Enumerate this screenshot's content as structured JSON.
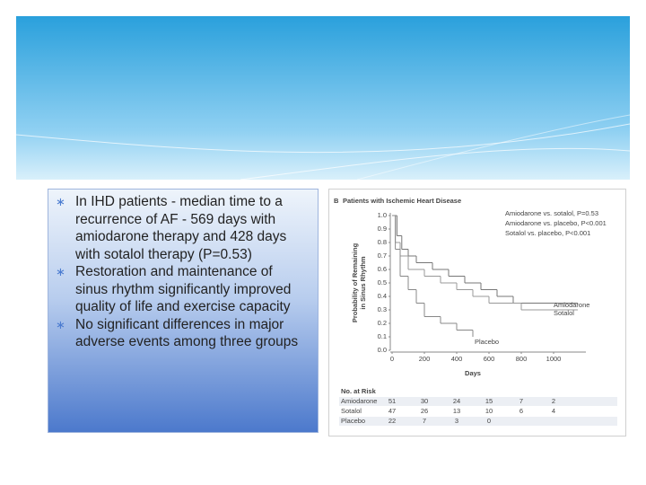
{
  "bullets": [
    "In IHD patients - median time to a recurrence of AF - 569 days with amiodarone therapy and 428 days with sotalol therapy (P=0.53)",
    "Restoration and maintenance of sinus rhythm significantly improved quality of life and exercise capacity",
    "No significant differences in major adverse events among three groups"
  ],
  "chart_data": {
    "type": "line",
    "step": true,
    "panel": "B",
    "title": "Patients with Ischemic Heart Disease",
    "ylabel": [
      "Probability of Remaining",
      "in Sinus Rhythm"
    ],
    "xlabel": "Days",
    "annotations": [
      "Amiodarone vs. sotalol, P=0.53",
      "Amiodarone vs. placebo, P<0.001",
      "Sotalol vs. placebo, P<0.001"
    ],
    "xlim": [
      0,
      1200
    ],
    "xticks": [
      0,
      200,
      400,
      600,
      800,
      1000
    ],
    "ylim": [
      0,
      1
    ],
    "yticks": [
      {
        "value": 0,
        "label": "0.0"
      },
      {
        "value": 0.1,
        "label": "0.1"
      },
      {
        "value": 0.2,
        "label": "0.2"
      },
      {
        "value": 0.3,
        "label": "0.3"
      },
      {
        "value": 0.4,
        "label": "0.4"
      },
      {
        "value": 0.5,
        "label": "0.5"
      },
      {
        "value": 0.6,
        "label": "0.6"
      },
      {
        "value": 0.7,
        "label": "0.7"
      },
      {
        "value": 0.8,
        "label": "0.8"
      },
      {
        "value": 0.9,
        "label": "0.9"
      },
      {
        "value": 1,
        "label": "1.0"
      }
    ],
    "series": [
      {
        "name": "Amiodarone",
        "color": "#777777",
        "x": [
          0,
          30,
          60,
          100,
          150,
          250,
          350,
          450,
          550,
          650,
          750,
          1150
        ],
        "values": [
          1.0,
          0.85,
          0.75,
          0.7,
          0.65,
          0.6,
          0.55,
          0.5,
          0.45,
          0.4,
          0.35,
          0.35
        ]
      },
      {
        "name": "Sotalol",
        "color": "#999999",
        "x": [
          0,
          20,
          50,
          100,
          200,
          300,
          400,
          500,
          600,
          800,
          1150
        ],
        "values": [
          1.0,
          0.8,
          0.7,
          0.6,
          0.55,
          0.5,
          0.45,
          0.4,
          0.35,
          0.3,
          0.3
        ]
      },
      {
        "name": "Placebo",
        "color": "#888888",
        "x": [
          0,
          20,
          50,
          100,
          150,
          200,
          300,
          400,
          500
        ],
        "values": [
          1.0,
          0.75,
          0.55,
          0.45,
          0.35,
          0.25,
          0.2,
          0.15,
          0.1
        ]
      }
    ],
    "risk_table": {
      "title": "No. at Risk",
      "rows": [
        [
          "51",
          "30",
          "24",
          "15",
          "7",
          "2"
        ],
        [
          "47",
          "26",
          "13",
          "10",
          "6",
          "4"
        ],
        [
          "22",
          "7",
          "3",
          "0"
        ]
      ]
    }
  }
}
